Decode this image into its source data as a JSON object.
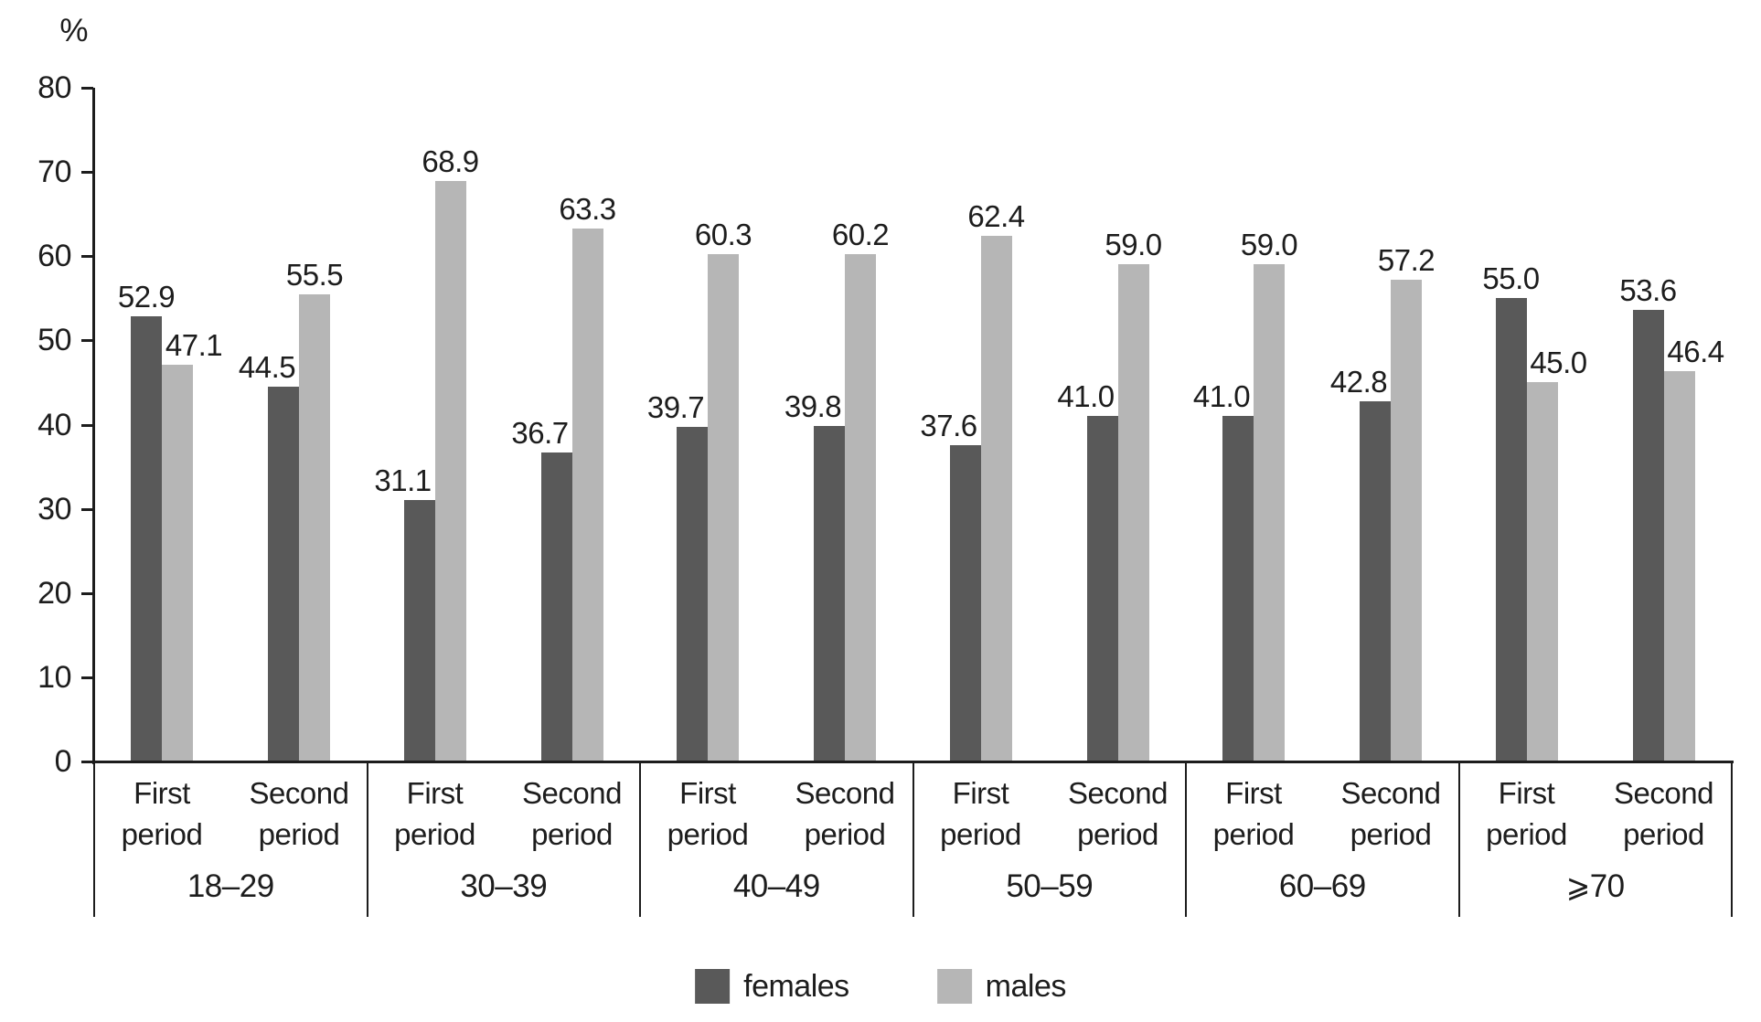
{
  "chart_data": {
    "type": "bar",
    "title": "",
    "ylabel": "%",
    "ylim": [
      0,
      80
    ],
    "yticks": [
      0,
      10,
      20,
      30,
      40,
      50,
      60,
      70,
      80
    ],
    "grid": false,
    "legend_position": "bottom",
    "value_label_decimals": 1,
    "categories": [
      "18–29",
      "30–39",
      "40–49",
      "50–59",
      "60–69",
      "⩾70"
    ],
    "subcategories": [
      "First period",
      "Second period"
    ],
    "series": [
      {
        "name": "females",
        "color": "#595959",
        "values": [
          [
            52.9,
            44.5
          ],
          [
            31.1,
            36.7
          ],
          [
            39.7,
            39.8
          ],
          [
            37.6,
            41.0
          ],
          [
            41.0,
            42.8
          ],
          [
            55.0,
            53.6
          ]
        ]
      },
      {
        "name": "males",
        "color": "#b6b6b6",
        "values": [
          [
            47.1,
            55.5
          ],
          [
            68.9,
            63.3
          ],
          [
            60.3,
            60.2
          ],
          [
            62.4,
            59.0
          ],
          [
            59.0,
            57.2
          ],
          [
            45.0,
            46.4
          ]
        ]
      }
    ]
  }
}
